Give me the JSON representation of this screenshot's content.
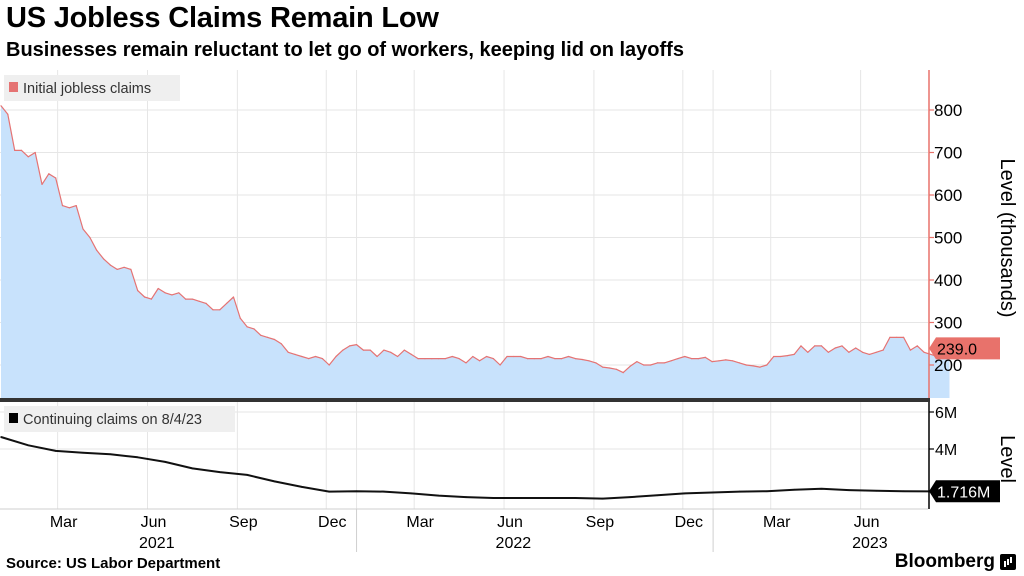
{
  "header": {
    "title": "US Jobless Claims Remain Low",
    "subtitle": "Businesses remain reluctant to let go of workers, keeping lid on layoffs"
  },
  "footer": {
    "source": "Source: US Labor Department",
    "brand": "Bloomberg"
  },
  "colors": {
    "initial_line": "#e57373",
    "initial_fill": "#c8e2fc",
    "continuing_line": "#111111",
    "axis_red": "#e8726b",
    "grid": "#e6e6e6",
    "divider": "#333333"
  },
  "chart_data": [
    {
      "type": "area",
      "legend": "Initial jobless claims",
      "ylabel": "Level (thousands)",
      "yticks": [
        200,
        300,
        400,
        500,
        600,
        700,
        800
      ],
      "ylim": [
        165,
        860
      ],
      "xlim": [
        "2021-01-01",
        "2023-08-09"
      ],
      "last_value_label": "239.0",
      "series": [
        {
          "name": "Initial jobless claims",
          "points": [
            [
              "2021-01-02",
              810
            ],
            [
              "2021-01-09",
              790
            ],
            [
              "2021-01-16",
              705
            ],
            [
              "2021-01-23",
              705
            ],
            [
              "2021-01-30",
              690
            ],
            [
              "2021-02-06",
              700
            ],
            [
              "2021-02-13",
              625
            ],
            [
              "2021-02-20",
              650
            ],
            [
              "2021-02-27",
              640
            ],
            [
              "2021-03-06",
              575
            ],
            [
              "2021-03-13",
              570
            ],
            [
              "2021-03-20",
              575
            ],
            [
              "2021-03-27",
              520
            ],
            [
              "2021-04-03",
              500
            ],
            [
              "2021-04-10",
              470
            ],
            [
              "2021-04-17",
              450
            ],
            [
              "2021-04-24",
              435
            ],
            [
              "2021-05-01",
              425
            ],
            [
              "2021-05-08",
              430
            ],
            [
              "2021-05-15",
              425
            ],
            [
              "2021-05-22",
              375
            ],
            [
              "2021-05-29",
              360
            ],
            [
              "2021-06-05",
              355
            ],
            [
              "2021-06-12",
              380
            ],
            [
              "2021-06-19",
              370
            ],
            [
              "2021-06-26",
              365
            ],
            [
              "2021-07-03",
              370
            ],
            [
              "2021-07-10",
              355
            ],
            [
              "2021-07-17",
              355
            ],
            [
              "2021-07-24",
              350
            ],
            [
              "2021-07-31",
              345
            ],
            [
              "2021-08-07",
              330
            ],
            [
              "2021-08-14",
              330
            ],
            [
              "2021-08-21",
              345
            ],
            [
              "2021-08-28",
              360
            ],
            [
              "2021-09-04",
              310
            ],
            [
              "2021-09-11",
              290
            ],
            [
              "2021-09-18",
              285
            ],
            [
              "2021-09-25",
              270
            ],
            [
              "2021-10-02",
              265
            ],
            [
              "2021-10-09",
              260
            ],
            [
              "2021-10-16",
              250
            ],
            [
              "2021-10-23",
              230
            ],
            [
              "2021-10-30",
              225
            ],
            [
              "2021-11-06",
              220
            ],
            [
              "2021-11-13",
              215
            ],
            [
              "2021-11-20",
              220
            ],
            [
              "2021-11-27",
              215
            ],
            [
              "2021-12-04",
              200
            ],
            [
              "2021-12-11",
              220
            ],
            [
              "2021-12-18",
              235
            ],
            [
              "2021-12-25",
              245
            ],
            [
              "2022-01-01",
              248
            ],
            [
              "2022-01-08",
              235
            ],
            [
              "2022-01-15",
              235
            ],
            [
              "2022-01-22",
              220
            ],
            [
              "2022-01-29",
              235
            ],
            [
              "2022-02-05",
              230
            ],
            [
              "2022-02-12",
              220
            ],
            [
              "2022-02-19",
              235
            ],
            [
              "2022-02-26",
              225
            ],
            [
              "2022-03-05",
              215
            ],
            [
              "2022-03-12",
              215
            ],
            [
              "2022-03-19",
              215
            ],
            [
              "2022-03-26",
              215
            ],
            [
              "2022-04-02",
              215
            ],
            [
              "2022-04-09",
              220
            ],
            [
              "2022-04-16",
              215
            ],
            [
              "2022-04-23",
              205
            ],
            [
              "2022-04-30",
              220
            ],
            [
              "2022-05-07",
              210
            ],
            [
              "2022-05-14",
              220
            ],
            [
              "2022-05-21",
              215
            ],
            [
              "2022-05-28",
              200
            ],
            [
              "2022-06-04",
              220
            ],
            [
              "2022-06-11",
              220
            ],
            [
              "2022-06-18",
              220
            ],
            [
              "2022-06-25",
              215
            ],
            [
              "2022-07-02",
              215
            ],
            [
              "2022-07-09",
              215
            ],
            [
              "2022-07-16",
              220
            ],
            [
              "2022-07-23",
              215
            ],
            [
              "2022-07-30",
              215
            ],
            [
              "2022-08-06",
              220
            ],
            [
              "2022-08-13",
              215
            ],
            [
              "2022-08-20",
              213
            ],
            [
              "2022-08-27",
              210
            ],
            [
              "2022-09-03",
              205
            ],
            [
              "2022-09-10",
              195
            ],
            [
              "2022-09-17",
              193
            ],
            [
              "2022-09-24",
              190
            ],
            [
              "2022-10-01",
              182
            ],
            [
              "2022-10-08",
              197
            ],
            [
              "2022-10-15",
              208
            ],
            [
              "2022-10-22",
              200
            ],
            [
              "2022-10-29",
              200
            ],
            [
              "2022-11-05",
              205
            ],
            [
              "2022-11-12",
              205
            ],
            [
              "2022-11-19",
              210
            ],
            [
              "2022-11-26",
              215
            ],
            [
              "2022-12-03",
              220
            ],
            [
              "2022-12-10",
              215
            ],
            [
              "2022-12-17",
              215
            ],
            [
              "2022-12-24",
              218
            ],
            [
              "2022-12-31",
              208
            ],
            [
              "2023-01-07",
              210
            ],
            [
              "2023-01-14",
              212
            ],
            [
              "2023-01-21",
              210
            ],
            [
              "2023-01-28",
              205
            ],
            [
              "2023-02-04",
              200
            ],
            [
              "2023-02-11",
              198
            ],
            [
              "2023-02-18",
              195
            ],
            [
              "2023-02-25",
              200
            ],
            [
              "2023-03-04",
              220
            ],
            [
              "2023-03-11",
              220
            ],
            [
              "2023-03-18",
              222
            ],
            [
              "2023-03-25",
              225
            ],
            [
              "2023-04-01",
              245
            ],
            [
              "2023-04-08",
              230
            ],
            [
              "2023-04-15",
              245
            ],
            [
              "2023-04-22",
              245
            ],
            [
              "2023-04-29",
              230
            ],
            [
              "2023-05-06",
              240
            ],
            [
              "2023-05-13",
              245
            ],
            [
              "2023-05-20",
              230
            ],
            [
              "2023-05-27",
              240
            ],
            [
              "2023-06-03",
              230
            ],
            [
              "2023-06-10",
              225
            ],
            [
              "2023-06-17",
              230
            ],
            [
              "2023-06-24",
              235
            ],
            [
              "2023-07-01",
              265
            ],
            [
              "2023-07-08",
              265
            ],
            [
              "2023-07-15",
              265
            ],
            [
              "2023-07-22",
              235
            ],
            [
              "2023-07-29",
              245
            ],
            [
              "2023-08-05",
              230
            ],
            [
              "2023-08-12",
              225
            ],
            [
              "2023-08-19",
              220
            ],
            [
              "2023-08-26",
              248
            ],
            [
              "2023-08-31",
              239
            ]
          ]
        }
      ]
    },
    {
      "type": "line",
      "legend": "Continuing claims on 8/4/23",
      "ylabel": "Level",
      "yticks": [
        "6M",
        "4M"
      ],
      "ytick_values": [
        6,
        4
      ],
      "ylim": [
        0.4,
        6.6
      ],
      "xlim": [
        "2021-01-01",
        "2023-08-09"
      ],
      "last_value_label": "1.716M",
      "series": [
        {
          "name": "Continuing claims",
          "points": [
            [
              "2021-01-02",
              4.65
            ],
            [
              "2021-01-30",
              4.2
            ],
            [
              "2021-02-27",
              3.9
            ],
            [
              "2021-03-27",
              3.8
            ],
            [
              "2021-04-24",
              3.72
            ],
            [
              "2021-05-22",
              3.55
            ],
            [
              "2021-06-19",
              3.3
            ],
            [
              "2021-07-17",
              2.95
            ],
            [
              "2021-08-14",
              2.75
            ],
            [
              "2021-09-11",
              2.6
            ],
            [
              "2021-10-09",
              2.25
            ],
            [
              "2021-11-06",
              1.95
            ],
            [
              "2021-12-04",
              1.7
            ],
            [
              "2022-01-01",
              1.72
            ],
            [
              "2022-01-29",
              1.7
            ],
            [
              "2022-02-26",
              1.6
            ],
            [
              "2022-03-26",
              1.48
            ],
            [
              "2022-04-23",
              1.4
            ],
            [
              "2022-05-21",
              1.35
            ],
            [
              "2022-06-18",
              1.35
            ],
            [
              "2022-07-16",
              1.35
            ],
            [
              "2022-08-13",
              1.35
            ],
            [
              "2022-09-10",
              1.32
            ],
            [
              "2022-10-08",
              1.4
            ],
            [
              "2022-11-05",
              1.5
            ],
            [
              "2022-12-03",
              1.6
            ],
            [
              "2022-12-31",
              1.65
            ],
            [
              "2023-01-28",
              1.7
            ],
            [
              "2023-02-25",
              1.72
            ],
            [
              "2023-03-25",
              1.8
            ],
            [
              "2023-04-22",
              1.85
            ],
            [
              "2023-05-20",
              1.78
            ],
            [
              "2023-06-17",
              1.74
            ],
            [
              "2023-07-15",
              1.72
            ],
            [
              "2023-08-12",
              1.71
            ],
            [
              "2023-08-31",
              1.716
            ]
          ]
        }
      ]
    }
  ],
  "x_axis": {
    "months": [
      {
        "date": "2021-03-01",
        "label": "Mar"
      },
      {
        "date": "2021-06-01",
        "label": "Jun"
      },
      {
        "date": "2021-09-01",
        "label": "Sep"
      },
      {
        "date": "2021-12-01",
        "label": "Dec"
      },
      {
        "date": "2022-03-01",
        "label": "Mar"
      },
      {
        "date": "2022-06-01",
        "label": "Jun"
      },
      {
        "date": "2022-09-01",
        "label": "Sep"
      },
      {
        "date": "2022-12-01",
        "label": "Dec"
      },
      {
        "date": "2023-03-01",
        "label": "Mar"
      },
      {
        "date": "2023-06-01",
        "label": "Jun"
      }
    ],
    "years": [
      {
        "date": "2021-07-01",
        "label": "2021"
      },
      {
        "date": "2022-07-01",
        "label": "2022"
      },
      {
        "date": "2023-07-01",
        "label": "2023"
      }
    ]
  }
}
